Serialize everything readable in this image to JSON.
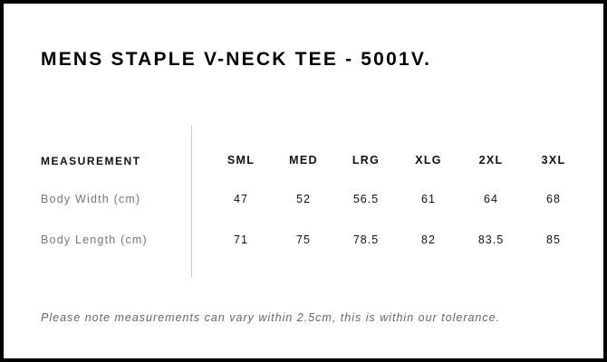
{
  "title": "MENS STAPLE V-NECK TEE - 5001V.",
  "table": {
    "header_label": "MEASUREMENT",
    "sizes": [
      "SML",
      "MED",
      "LRG",
      "XLG",
      "2XL",
      "3XL"
    ],
    "rows": [
      {
        "label": "Body Width (cm)",
        "values": [
          "47",
          "52",
          "56.5",
          "61",
          "64",
          "68"
        ]
      },
      {
        "label": "Body Length (cm)",
        "values": [
          "71",
          "75",
          "78.5",
          "82",
          "83.5",
          "85"
        ]
      }
    ]
  },
  "note": "Please note measurements can vary within 2.5cm, this is within our tolerance."
}
